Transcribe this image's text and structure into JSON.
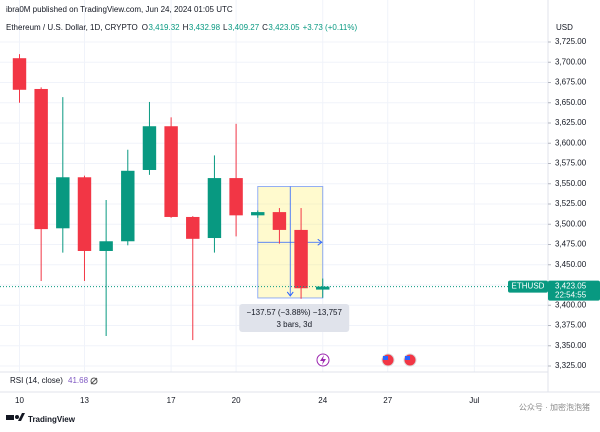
{
  "chart_data": {
    "type": "candlestick",
    "published": "ibra0M published on TradingView.com, Jun 24, 2024 01:05 UTC",
    "symbol": "Ethereum / U.S. Dollar, 1D, CRYPTO",
    "ohlc_legend": [
      {
        "key": "O",
        "text": "3,419.32"
      },
      {
        "key": "H",
        "text": "3,432.98"
      },
      {
        "key": "L",
        "text": "3,409.27"
      },
      {
        "key": "C",
        "text": "3,423.05"
      }
    ],
    "change": "+3.73 (+0.11%)",
    "currency": "USD",
    "x": [
      10,
      11,
      12,
      13,
      14,
      15,
      16,
      17,
      18,
      19,
      20,
      21,
      22,
      23,
      24
    ],
    "open": [
      3705,
      3667,
      3495,
      3558,
      3467,
      3479,
      3567,
      3621,
      3509,
      3483,
      3557,
      3511,
      3515,
      3493,
      3419.32
    ],
    "high": [
      3710,
      3669,
      3657,
      3560,
      3530,
      3592,
      3651,
      3632,
      3510,
      3585,
      3624,
      3517,
      3520,
      3520,
      3432.98
    ],
    "low": [
      3650,
      3430,
      3465,
      3430,
      3362,
      3474,
      3561,
      3508,
      3357,
      3465,
      3485,
      3508,
      3476,
      3408,
      3409.27
    ],
    "close": [
      3666,
      3494,
      3558,
      3467,
      3479,
      3566,
      3621,
      3509,
      3482,
      3557,
      3511,
      3515,
      3493,
      3421,
      3423.05
    ],
    "up_color": "#089981",
    "down_color": "#f23645",
    "xlim": [
      9.1,
      34.4
    ],
    "xticks": [
      10,
      13,
      17,
      20,
      24,
      27,
      {
        "value": 31,
        "label": "Jul"
      }
    ],
    "ylim": [
      3317.6,
      3732.4
    ],
    "yticks": [
      {
        "value": 3725,
        "label": "3,725.00"
      },
      {
        "value": 3700,
        "label": "3,700.00"
      },
      {
        "value": 3675,
        "label": "3,675.00"
      },
      {
        "value": 3650,
        "label": "3,650.00"
      },
      {
        "value": 3625,
        "label": "3,625.00"
      },
      {
        "value": 3600,
        "label": "3,600.00"
      },
      {
        "value": 3575,
        "label": "3,575.00"
      },
      {
        "value": 3550,
        "label": "3,550.00"
      },
      {
        "value": 3525,
        "label": "3,525.00"
      },
      {
        "value": 3500,
        "label": "3,500.00"
      },
      {
        "value": 3475,
        "label": "3,475.00"
      },
      {
        "value": 3450,
        "label": "3,450.00"
      },
      {
        "value": 3425,
        "label": "3,425.00"
      },
      {
        "value": 3400,
        "label": "3,400.00"
      },
      {
        "value": 3375,
        "label": "3,375.00"
      },
      {
        "value": 3350,
        "label": "3,350.00"
      },
      {
        "value": 3325,
        "label": "3,325.00"
      }
    ],
    "grid": true,
    "last_price": {
      "ticker": "ETHUSD",
      "value": 3423.05,
      "label": "3,423.05",
      "countdown": "22:54:55"
    },
    "measure": {
      "x": [
        21,
        24
      ],
      "y": [
        3546.6,
        3409.0
      ],
      "label": "−137.57 (−3.88%) −13,757",
      "sublabel": "3 bars, 3d"
    },
    "rsi": {
      "name": "RSI (14, close)",
      "value": "41.68"
    },
    "footer": "TradingView",
    "watermark": "公众号 · 加密泡泡猪"
  }
}
